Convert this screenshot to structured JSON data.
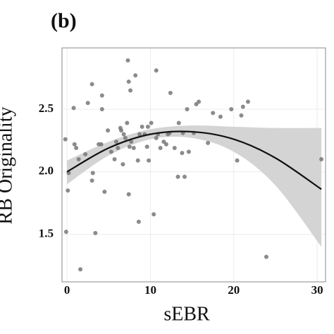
{
  "chart_data": {
    "type": "scatter",
    "title": "(b)",
    "xlabel": "sEBR",
    "ylabel": "RB Originality",
    "xlim": [
      -0.6,
      31
    ],
    "ylim": [
      1.12,
      2.99
    ],
    "xticks": [
      0,
      10,
      20,
      30
    ],
    "yticks": [
      1.5,
      {
        "value": 2,
        "label": "2.0"
      },
      2.5
    ],
    "grid": true,
    "color": "#777777",
    "x": [
      -0.2,
      0.1,
      -0.1,
      0.2,
      0.8,
      0.9,
      1.1,
      1.4,
      1.6,
      2.2,
      2.5,
      3.0,
      3.0,
      3.1,
      3.4,
      3.8,
      4.1,
      4.2,
      4.2,
      4.5,
      4.9,
      5.3,
      5.7,
      5.9,
      6.1,
      6.4,
      6.5,
      6.7,
      6.8,
      7.0,
      7.2,
      7.3,
      7.4,
      7.4,
      7.5,
      7.6,
      7.7,
      8.0,
      8.2,
      8.5,
      8.6,
      8.7,
      9.0,
      9.3,
      9.6,
      9.7,
      9.8,
      10.1,
      10.4,
      10.7,
      10.7,
      10.9,
      11.2,
      11.6,
      11.9,
      12.1,
      12.3,
      12.4,
      12.9,
      13.3,
      13.4,
      13.8,
      13.9,
      14.1,
      14.4,
      14.6,
      15.2,
      15.5,
      15.8,
      16.9,
      17.5,
      18.4,
      19.7,
      20.4,
      20.9,
      21.1,
      21.7,
      23.9,
      30.5
    ],
    "values": [
      2.26,
      1.85,
      1.52,
      1.99,
      2.51,
      2.22,
      2.19,
      2.1,
      1.22,
      2.14,
      2.55,
      2.7,
      1.93,
      1.99,
      1.51,
      2.22,
      2.22,
      2.61,
      2.5,
      1.84,
      2.33,
      2.16,
      2.1,
      2.24,
      2.19,
      2.35,
      2.33,
      2.06,
      2.3,
      2.27,
      2.39,
      2.89,
      2.72,
      1.82,
      2.2,
      2.65,
      2.24,
      2.19,
      2.77,
      2.09,
      1.6,
      2.3,
      2.36,
      2.3,
      2.2,
      2.36,
      2.09,
      2.39,
      1.66,
      2.81,
      2.27,
      2.3,
      2.19,
      2.24,
      2.22,
      2.3,
      2.31,
      2.63,
      2.19,
      1.96,
      2.39,
      2.15,
      2.31,
      1.96,
      2.5,
      2.16,
      2.31,
      2.54,
      2.56,
      2.23,
      2.47,
      2.44,
      2.5,
      2.09,
      2.45,
      2.52,
      2.56,
      1.32,
      2.1
    ],
    "fit": {
      "color": "#111111",
      "band_color": "#d4d4d4",
      "x": [
        0,
        5,
        10,
        15,
        20,
        25,
        30.5
      ],
      "values": [
        2.0,
        2.19,
        2.3,
        2.32,
        2.26,
        2.11,
        1.86
      ],
      "lower": [
        1.9,
        2.13,
        2.26,
        2.27,
        2.16,
        1.89,
        1.4
      ],
      "upper": [
        2.09,
        2.24,
        2.34,
        2.37,
        2.36,
        2.35,
        2.35
      ]
    }
  }
}
